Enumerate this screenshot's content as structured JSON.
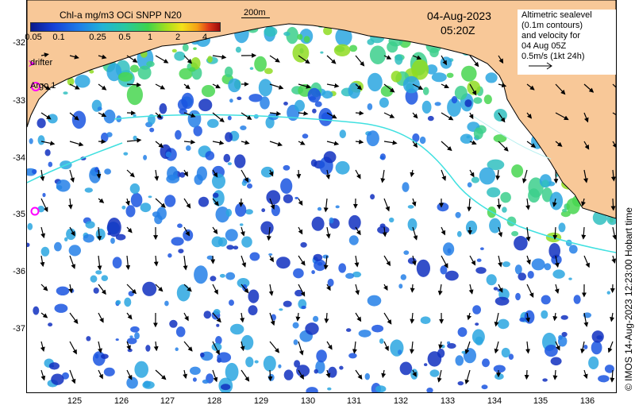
{
  "colorbar": {
    "title": "Chl-a mg/m3 OCi SNPP N20",
    "ticks": [
      "0.05",
      "0.1",
      "0.25",
      "0.5",
      "1",
      "2",
      "4"
    ]
  },
  "scale_bar": {
    "label": "200m"
  },
  "header": {
    "date": "04-Aug-2023",
    "time": "05:20Z"
  },
  "legend": {
    "lines": [
      "Altimetric sealevel",
      "(0.1m contours)",
      "and velocity for",
      "04 Aug 05Z",
      "0.5m/s (1kt 24h)"
    ]
  },
  "markers": {
    "drifter_label": "drifter",
    "argo_label": "Argo 1"
  },
  "axes": {
    "y_labels": [
      "-32",
      "-33",
      "-34",
      "-35",
      "-36",
      "-37"
    ],
    "x_labels": [
      "125",
      "126",
      "127",
      "128",
      "129",
      "130",
      "131",
      "132",
      "133",
      "134",
      "135",
      "136"
    ]
  },
  "credit": "© IMOS 14-Aug-2023 12:23:00 Hobart time",
  "colors": {
    "land": "#f8c898",
    "sea": "#ffffff",
    "contour": "#40e0e0",
    "drifter": "#ff00ff",
    "argo": "#ff00ff"
  }
}
